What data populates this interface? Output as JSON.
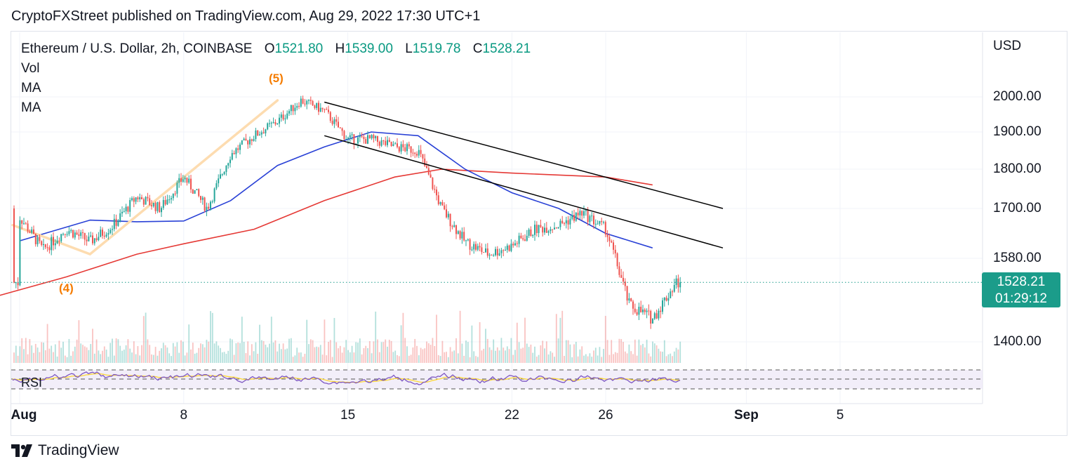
{
  "header": {
    "published": "CryptoFXStreet published on TradingView.com, Aug 29, 2022 17:30 UTC+1"
  },
  "legend": {
    "symbol": "Ethereum / U.S. Dollar, 2h, COINBASE",
    "o_label": "O",
    "o_value": "1521.80",
    "h_label": "H",
    "h_value": "1539.00",
    "l_label": "L",
    "l_value": "1519.78",
    "c_label": "C",
    "c_value": "1528.21",
    "indicators": [
      "Vol",
      "MA",
      "MA"
    ]
  },
  "price_tag": {
    "price": "1528.21",
    "countdown": "01:29:12"
  },
  "wave_labels": {
    "five": "(5)",
    "four": "(4)"
  },
  "rsi_label": "RSI",
  "brand": {
    "name": "TradingView",
    "logo_icon": "tradingview-logo-icon"
  },
  "colors": {
    "up": "#26a69a",
    "down": "#ef5350",
    "ma_fast": "#2941d6",
    "ma_slow": "#e53935",
    "rsi": "#7e57c2",
    "rsi_ma": "#fdd835",
    "wave": "#fddcb0",
    "channel": "#000000",
    "price_line": "#1b9c8a"
  },
  "chart_data": {
    "type": "candlestick",
    "title": "Ethereum / U.S. Dollar, 2h, COINBASE",
    "currency": "USD",
    "y_ticks": [
      "2000.00",
      "1900.00",
      "1800.00",
      "1700.00",
      "1580.00",
      "1400.00"
    ],
    "y_tick_values": [
      2000,
      1900,
      1800,
      1700,
      1580,
      1400
    ],
    "x_ticks": [
      "Aug",
      "8",
      "15",
      "22",
      "26",
      "Sep",
      "5"
    ],
    "x_tick_dates": [
      "2022-08-01",
      "2022-08-08",
      "2022-08-15",
      "2022-08-22",
      "2022-08-26",
      "2022-09-01",
      "2022-09-05"
    ],
    "ylim": [
      1340,
      2100
    ],
    "last_price": 1528.21,
    "price_path": [
      [
        "2022-08-01",
        1680
      ],
      [
        "2022-08-02",
        1600
      ],
      [
        "2022-08-03",
        1650
      ],
      [
        "2022-08-04",
        1620
      ],
      [
        "2022-08-05",
        1660
      ],
      [
        "2022-08-06",
        1730
      ],
      [
        "2022-08-07",
        1700
      ],
      [
        "2022-08-08",
        1780
      ],
      [
        "2022-08-09",
        1700
      ],
      [
        "2022-08-10",
        1840
      ],
      [
        "2022-08-11",
        1890
      ],
      [
        "2022-08-12",
        1930
      ],
      [
        "2022-08-13",
        1990
      ],
      [
        "2022-08-14",
        1960
      ],
      [
        "2022-08-15",
        1880
      ],
      [
        "2022-08-16",
        1880
      ],
      [
        "2022-08-17",
        1860
      ],
      [
        "2022-08-18",
        1850
      ],
      [
        "2022-08-19",
        1700
      ],
      [
        "2022-08-20",
        1620
      ],
      [
        "2022-08-21",
        1590
      ],
      [
        "2022-08-22",
        1610
      ],
      [
        "2022-08-23",
        1650
      ],
      [
        "2022-08-24",
        1660
      ],
      [
        "2022-08-25",
        1690
      ],
      [
        "2022-08-26",
        1650
      ],
      [
        "2022-08-27",
        1480
      ],
      [
        "2022-08-28",
        1450
      ],
      [
        "2022-08-29",
        1528
      ]
    ],
    "ma_fast": [
      [
        "2022-08-01",
        1622
      ],
      [
        "2022-08-04",
        1672
      ],
      [
        "2022-08-06",
        1668
      ],
      [
        "2022-08-08",
        1670
      ],
      [
        "2022-08-10",
        1720
      ],
      [
        "2022-08-12",
        1810
      ],
      [
        "2022-08-14",
        1860
      ],
      [
        "2022-08-16",
        1900
      ],
      [
        "2022-08-18",
        1890
      ],
      [
        "2022-08-20",
        1800
      ],
      [
        "2022-08-22",
        1740
      ],
      [
        "2022-08-24",
        1700
      ],
      [
        "2022-08-26",
        1640
      ],
      [
        "2022-08-28",
        1605
      ]
    ],
    "ma_slow": [
      [
        "2022-07-31",
        1498
      ],
      [
        "2022-08-03",
        1540
      ],
      [
        "2022-08-06",
        1590
      ],
      [
        "2022-08-08",
        1615
      ],
      [
        "2022-08-11",
        1650
      ],
      [
        "2022-08-14",
        1720
      ],
      [
        "2022-08-17",
        1780
      ],
      [
        "2022-08-19",
        1800
      ],
      [
        "2022-08-22",
        1790
      ],
      [
        "2022-08-26",
        1780
      ],
      [
        "2022-08-28",
        1760
      ]
    ],
    "channel_upper": [
      [
        "2022-08-14",
        1985
      ],
      [
        "2022-08-31",
        1700
      ]
    ],
    "channel_lower": [
      [
        "2022-08-14",
        1890
      ],
      [
        "2022-08-31",
        1605
      ]
    ],
    "elliott_wave": [
      {
        "label": "(4)",
        "date": "2022-08-04",
        "price": 1590
      },
      {
        "label": "(5)",
        "date": "2022-08-12",
        "price": 1990
      }
    ],
    "rsi_band": [
      30,
      70
    ]
  }
}
